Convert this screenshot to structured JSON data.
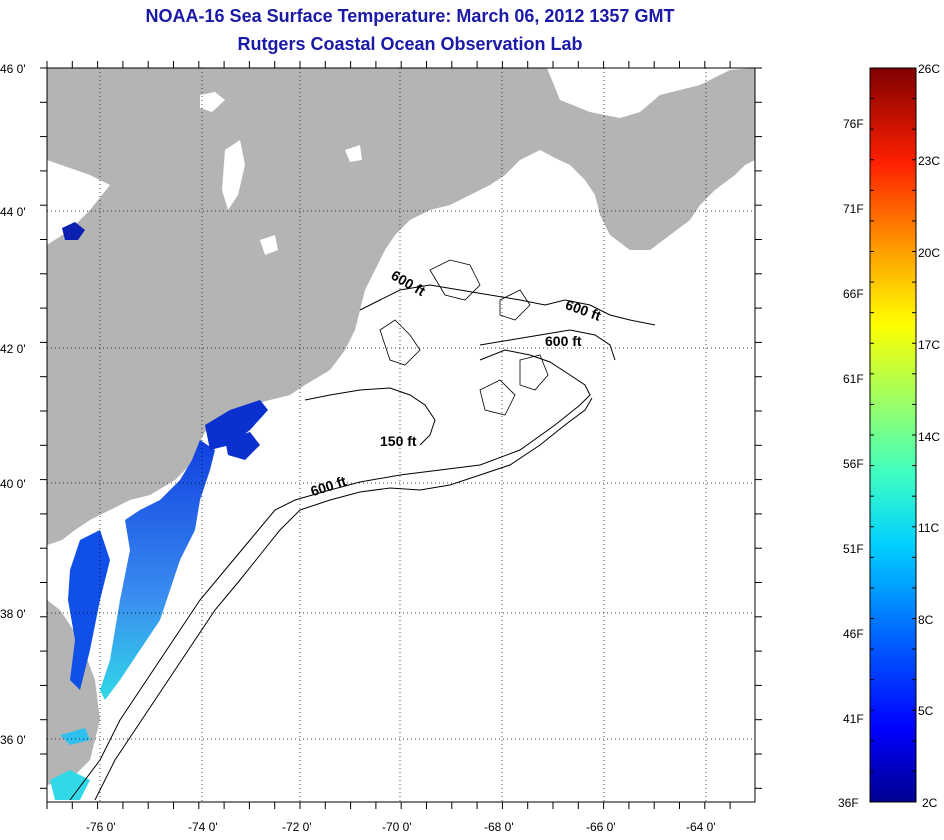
{
  "header": {
    "title": "NOAA-16 Sea Surface Temperature:  March 06, 2012 1357 GMT",
    "subtitle": "Rutgers Coastal Ocean Observation Lab"
  },
  "map": {
    "lat_labels": [
      "46 0'",
      "44 0'",
      "42 0'",
      "40 0'",
      "38 0'",
      "36 0'"
    ],
    "lon_labels": [
      "-76 0'",
      "-74 0'",
      "-72 0'",
      "-70 0'",
      "-68 0'",
      "-66 0'",
      "-64 0'"
    ],
    "contour_labels": [
      "600 ft",
      "600 ft",
      "600 ft",
      "150 ft",
      "600 ft"
    ],
    "colors": {
      "land": "#b4b4b4",
      "ocean": "#ffffff",
      "grid": "#000000"
    }
  },
  "colorbar": {
    "celsius_labels": [
      "26C",
      "23C",
      "20C",
      "17C",
      "14C",
      "11C",
      "8C",
      "5C",
      "2C"
    ],
    "fahrenheit_labels": [
      "76F",
      "71F",
      "66F",
      "61F",
      "56F",
      "51F",
      "46F",
      "41F",
      "36F"
    ],
    "colors": [
      "#00008f",
      "#0000ff",
      "#0060ff",
      "#00c0ff",
      "#20ffdf",
      "#80ff80",
      "#dfff20",
      "#ffbf00",
      "#ff6000",
      "#ff0000",
      "#800000"
    ]
  }
}
